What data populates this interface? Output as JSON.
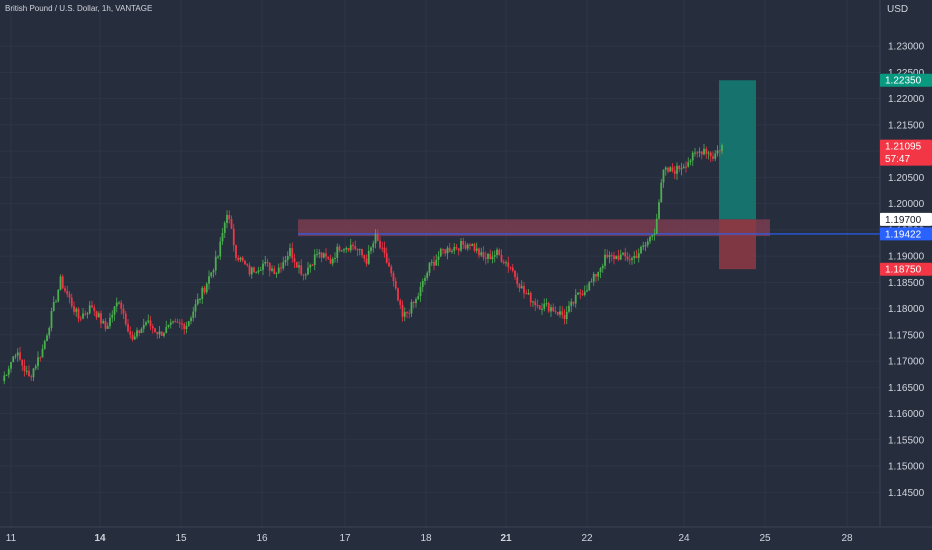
{
  "header": {
    "title": "British Pound / U.S. Dollar, 1h, VANTAGE",
    "currency": "USD"
  },
  "colors": {
    "background": "#262d3d",
    "up": "#4caf50",
    "down": "#f23645",
    "text": "#d1d4dc",
    "grid": "#2e3547",
    "horizontal_line": "#2962ff",
    "target_zone": "#147a71",
    "stop_zone": "#8a3a44",
    "supply_zone": "#7a3c4f"
  },
  "chart_data": {
    "type": "candlestick",
    "timeframe": "1h",
    "y_range": [
      1.1422,
      1.2365
    ],
    "y_ticks": [
      "1.23000",
      "1.22500",
      "1.22000",
      "1.21500",
      "1.21000",
      "1.20500",
      "1.20000",
      "1.19500",
      "1.19000",
      "1.18500",
      "1.18000",
      "1.17500",
      "1.17000",
      "1.16500",
      "1.16000",
      "1.15500",
      "1.15000",
      "1.14500"
    ],
    "x_ticks": [
      {
        "label": "11",
        "bold": false
      },
      {
        "label": "14",
        "bold": true
      },
      {
        "label": "15",
        "bold": false
      },
      {
        "label": "16",
        "bold": false
      },
      {
        "label": "17",
        "bold": false
      },
      {
        "label": "18",
        "bold": false
      },
      {
        "label": "21",
        "bold": true
      },
      {
        "label": "22",
        "bold": false
      },
      {
        "label": "24",
        "bold": false
      },
      {
        "label": "25",
        "bold": false
      },
      {
        "label": "28",
        "bold": false
      }
    ],
    "anchors": [
      [
        0,
        1.1662
      ],
      [
        6,
        1.1718
      ],
      [
        12,
        1.1668
      ],
      [
        18,
        1.1722
      ],
      [
        26,
        1.1853
      ],
      [
        34,
        1.1782
      ],
      [
        40,
        1.1805
      ],
      [
        46,
        1.1762
      ],
      [
        52,
        1.1818
      ],
      [
        58,
        1.1738
      ],
      [
        64,
        1.1775
      ],
      [
        70,
        1.1752
      ],
      [
        76,
        1.1768
      ],
      [
        82,
        1.177
      ],
      [
        90,
        1.184
      ],
      [
        96,
        1.19
      ],
      [
        100,
        1.1985
      ],
      [
        104,
        1.1905
      ],
      [
        110,
        1.187
      ],
      [
        116,
        1.1885
      ],
      [
        122,
        1.1872
      ],
      [
        128,
        1.191
      ],
      [
        134,
        1.1865
      ],
      [
        140,
        1.1905
      ],
      [
        146,
        1.189
      ],
      [
        150,
        1.1918
      ],
      [
        156,
        1.192
      ],
      [
        162,
        1.1892
      ],
      [
        166,
        1.1935
      ],
      [
        172,
        1.188
      ],
      [
        178,
        1.1782
      ],
      [
        184,
        1.1815
      ],
      [
        190,
        1.188
      ],
      [
        196,
        1.191
      ],
      [
        202,
        1.1918
      ],
      [
        208,
        1.1925
      ],
      [
        214,
        1.1895
      ],
      [
        220,
        1.1905
      ],
      [
        226,
        1.188
      ],
      [
        232,
        1.183
      ],
      [
        238,
        1.1808
      ],
      [
        244,
        1.1802
      ],
      [
        250,
        1.1785
      ],
      [
        256,
        1.1825
      ],
      [
        262,
        1.185
      ],
      [
        268,
        1.1895
      ],
      [
        274,
        1.19
      ],
      [
        280,
        1.1895
      ],
      [
        286,
        1.192
      ],
      [
        290,
        1.195
      ],
      [
        294,
        1.206
      ],
      [
        300,
        1.2065
      ],
      [
        306,
        1.2085
      ],
      [
        312,
        1.2105
      ],
      [
        316,
        1.209
      ],
      [
        320,
        1.211
      ]
    ],
    "series": [
      {
        "name": "GBP/USD"
      }
    ],
    "horizontal_line": {
      "value": 1.19422
    },
    "supply_zone": {
      "from": 1.1938,
      "to": 1.197
    },
    "position": {
      "entry": 1.197,
      "target": 1.2235,
      "stop": 1.1875
    },
    "price_labels": [
      {
        "text": "1.22350",
        "value": 1.2235,
        "kind": "target"
      },
      {
        "text": "1.21095",
        "value": 1.21095,
        "kind": "last",
        "sub": "57:47"
      },
      {
        "text": "1.19700",
        "value": 1.197,
        "kind": "entry"
      },
      {
        "text": "1.19422",
        "value": 1.19422,
        "kind": "line"
      },
      {
        "text": "1.18750",
        "value": 1.1875,
        "kind": "stop"
      }
    ]
  }
}
